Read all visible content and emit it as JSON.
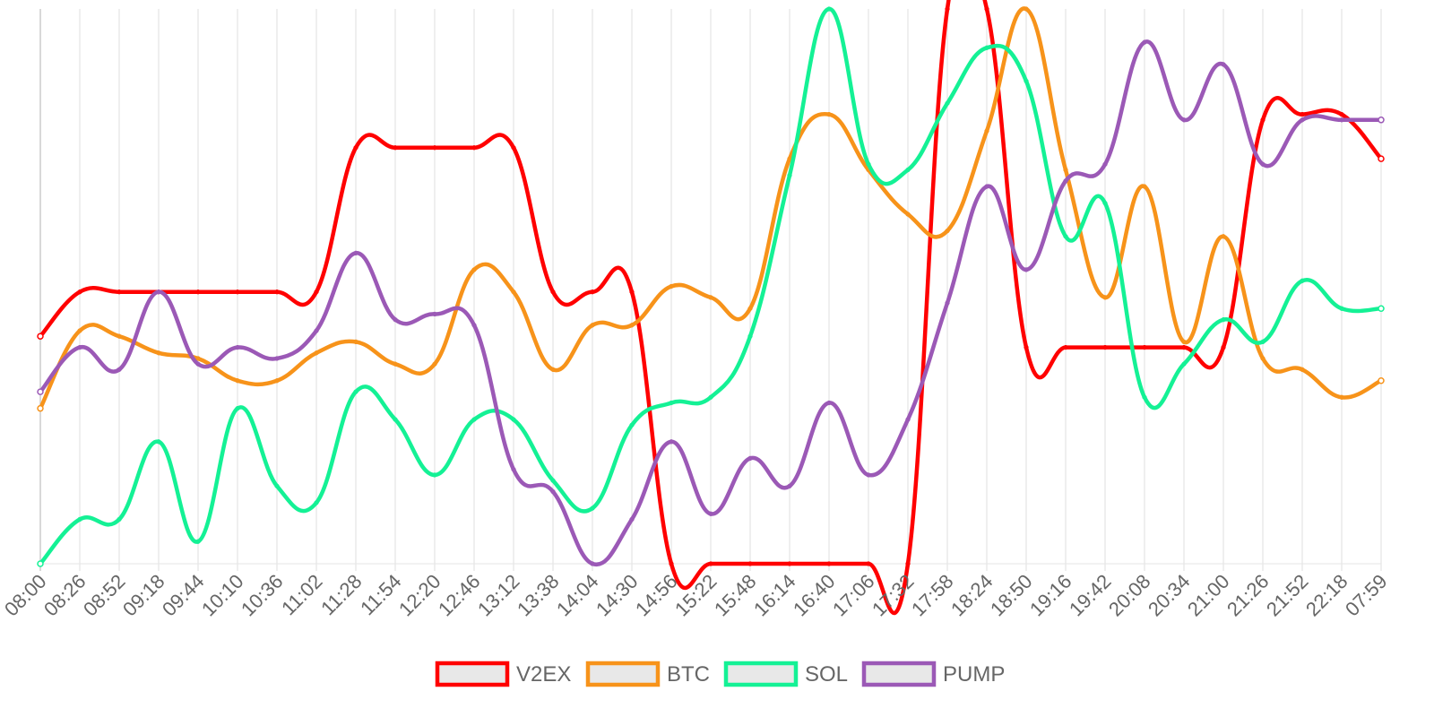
{
  "chart_data": {
    "type": "line",
    "title": "",
    "xlabel": "",
    "ylabel": "",
    "x": [
      "08:00",
      "08:26",
      "08:52",
      "09:18",
      "09:44",
      "10:10",
      "10:36",
      "11:02",
      "11:28",
      "11:54",
      "12:20",
      "12:46",
      "13:12",
      "13:38",
      "14:04",
      "14:30",
      "14:56",
      "15:22",
      "15:48",
      "16:14",
      "16:40",
      "17:06",
      "17:32",
      "17:58",
      "18:24",
      "18:50",
      "19:16",
      "19:42",
      "20:08",
      "20:34",
      "21:00",
      "21:26",
      "21:52",
      "22:18",
      "07:59"
    ],
    "ylim": [
      0,
      100
    ],
    "grid": "vertical",
    "legend_position": "bottom",
    "series": [
      {
        "name": "V2EX",
        "color": "#ff0000",
        "values": [
          41,
          49,
          49,
          49,
          49,
          49,
          49,
          49,
          75,
          75,
          75,
          75,
          75,
          49,
          49,
          49,
          0,
          0,
          0,
          0,
          0,
          0,
          0,
          100,
          100,
          39,
          39,
          39,
          39,
          39,
          39,
          80,
          81,
          81,
          73
        ]
      },
      {
        "name": "BTC",
        "color": "#f7931a",
        "values": [
          28,
          42,
          41,
          38,
          37,
          33,
          33,
          38,
          40,
          36,
          36,
          53,
          49,
          35,
          43,
          43,
          50,
          48,
          46,
          73,
          81,
          71,
          63,
          60,
          78,
          100,
          71,
          48,
          68,
          40,
          59,
          37,
          35,
          30,
          33
        ]
      },
      {
        "name": "SOL",
        "color": "#14f195",
        "values": [
          0,
          8,
          8,
          22,
          4,
          28,
          14,
          11,
          31,
          26,
          16,
          26,
          26,
          15,
          10,
          25,
          29,
          30,
          41,
          70,
          100,
          72,
          71,
          83,
          93,
          87,
          59,
          65,
          30,
          36,
          44,
          40,
          51,
          46,
          46
        ]
      },
      {
        "name": "PUMP",
        "color": "#9b59b6",
        "values": [
          31,
          39,
          35,
          49,
          36,
          39,
          37,
          42,
          56,
          44,
          45,
          43,
          17,
          13,
          0,
          8,
          22,
          9,
          19,
          14,
          29,
          16,
          26,
          47,
          68,
          53,
          69,
          72,
          94,
          80,
          90,
          72,
          80,
          80,
          80
        ]
      }
    ]
  }
}
